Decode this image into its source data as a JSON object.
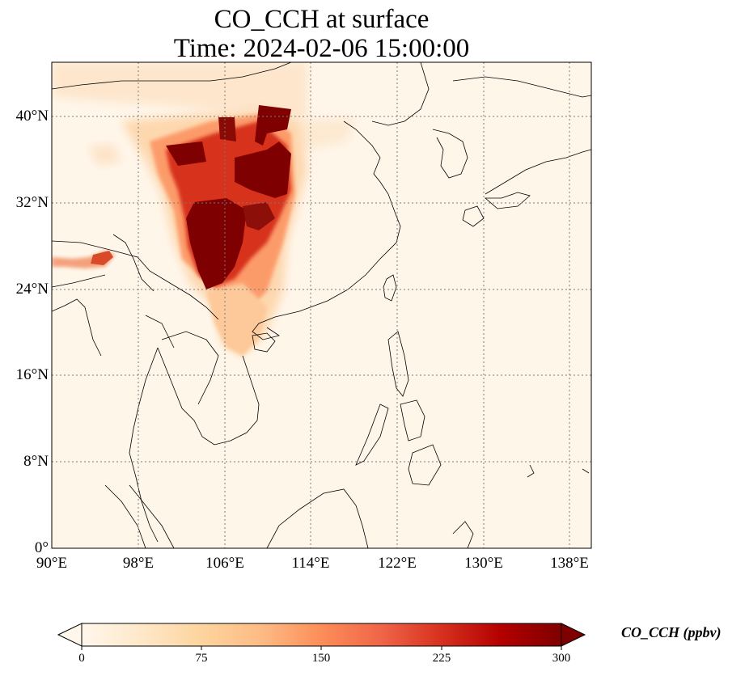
{
  "title": {
    "line1": "CO_CCH at surface",
    "line2": "Time: 2024-02-06 15:00:00"
  },
  "map": {
    "extent": {
      "lon": [
        90,
        140
      ],
      "lat": [
        0,
        45
      ]
    },
    "gridlines": "dotted",
    "coastlines": true,
    "borders": true
  },
  "x_ticks": [
    "90°E",
    "98°E",
    "106°E",
    "114°E",
    "122°E",
    "130°E",
    "138°E"
  ],
  "y_ticks": [
    "0°",
    "8°N",
    "16°N",
    "24°N",
    "32°N",
    "40°N"
  ],
  "colorbar": {
    "label": "CO_CCH (ppbv)",
    "ticks": [
      "0",
      "75",
      "150",
      "225",
      "300"
    ],
    "range": [
      0,
      300
    ],
    "colormap": "OrRd",
    "extend": "both",
    "colors": [
      "#fff7ec",
      "#fee8c8",
      "#fdd49e",
      "#fdbb84",
      "#fc8d59",
      "#ef6548",
      "#d7301f",
      "#b30000",
      "#7f0000"
    ]
  }
}
